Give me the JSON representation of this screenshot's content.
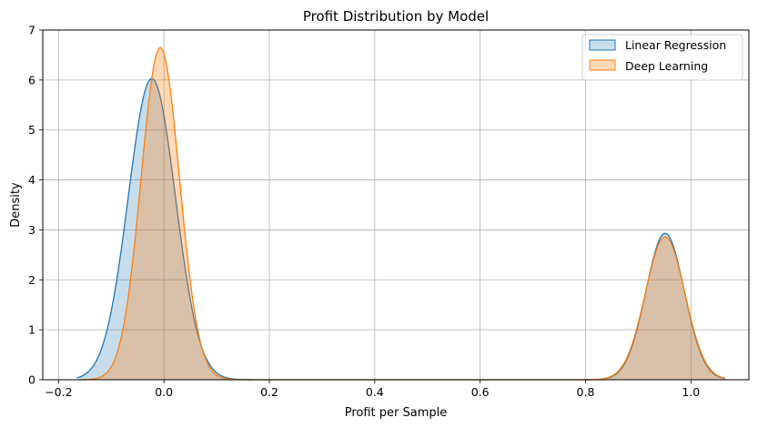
{
  "chart_data": {
    "type": "area",
    "title": "Profit Distribution by Model",
    "xlabel": "Profit per Sample",
    "ylabel": "Density",
    "xlim": [
      -0.23,
      1.11
    ],
    "ylim": [
      0,
      7
    ],
    "xticks": [
      -0.2,
      0.0,
      0.2,
      0.4,
      0.6,
      0.8,
      1.0
    ],
    "xtick_labels": [
      "−0.2",
      "0.0",
      "0.2",
      "0.4",
      "0.6",
      "0.8",
      "1.0"
    ],
    "yticks": [
      0,
      1,
      2,
      3,
      4,
      5,
      6,
      7
    ],
    "ytick_labels": [
      "0",
      "1",
      "2",
      "3",
      "4",
      "5",
      "6",
      "7"
    ],
    "grid": true,
    "legend_position": "top-right",
    "series": [
      {
        "name": "Linear Regression",
        "color": "#1f77b4",
        "x_range": [
          -0.165,
          1.065
        ],
        "components": [
          {
            "mean": -0.023,
            "sd": 0.0448,
            "peak": 6.03
          },
          {
            "mean": 0.951,
            "sd": 0.0365,
            "peak": 2.93
          }
        ]
      },
      {
        "name": "Deep Learning",
        "color": "#ff7f0e",
        "x_range": [
          -0.16,
          1.065
        ],
        "components": [
          {
            "mean": -0.007,
            "sd": 0.0365,
            "peak": 6.65
          },
          {
            "mean": 0.951,
            "sd": 0.0375,
            "peak": 2.86
          }
        ]
      }
    ]
  }
}
